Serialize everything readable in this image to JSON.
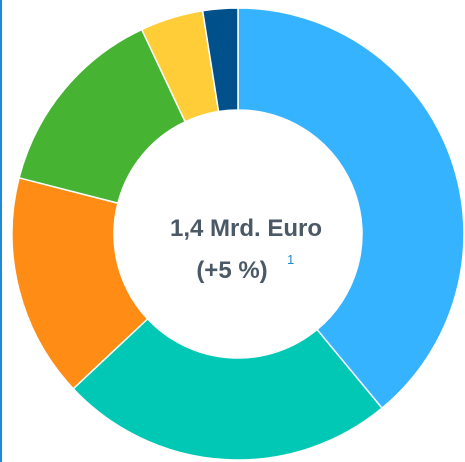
{
  "chart_data": {
    "type": "donut",
    "values": [
      39,
      24,
      16,
      14,
      4.5,
      2.5
    ],
    "colors": [
      "#36b3ff",
      "#00c8b4",
      "#ff8c14",
      "#46b432",
      "#ffcd37",
      "#00508c"
    ],
    "center_text": [
      "1,4 Mrd. Euro",
      "(+5 %)"
    ],
    "footnote": "1"
  }
}
